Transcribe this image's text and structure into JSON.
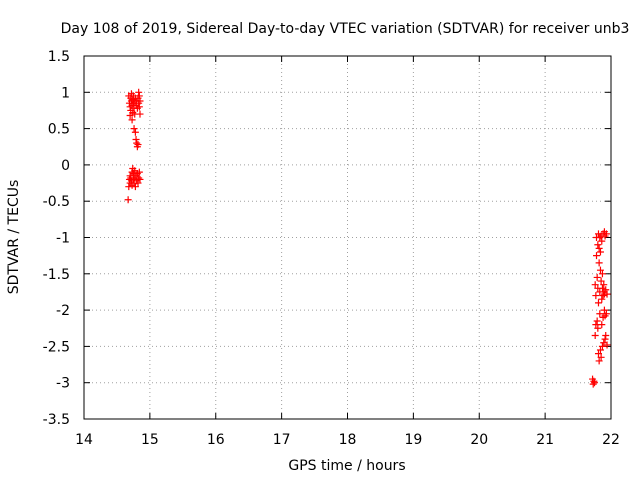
{
  "chart_data": {
    "type": "scatter",
    "title": "Day 108 of 2019, Sidereal Day-to-day VTEC variation (SDTVAR) for receiver unb3",
    "xlabel": "GPS time / hours",
    "ylabel": "SDTVAR / TECUs",
    "xlim": [
      14,
      22
    ],
    "ylim": [
      -3.5,
      1.5
    ],
    "xticks": [
      14,
      15,
      16,
      17,
      18,
      19,
      20,
      21,
      22
    ],
    "yticks": [
      1.5,
      1,
      0.5,
      0,
      -0.5,
      -1,
      -1.5,
      -2,
      -2.5,
      -3,
      -3.5
    ],
    "xtick_labels": [
      "14",
      "15",
      "16",
      "17",
      "18",
      "19",
      "20",
      "21",
      "22"
    ],
    "ytick_labels": [
      "1.5",
      "1",
      "0.5",
      "0",
      "-0.5",
      "-1",
      "-1.5",
      "-2",
      "-2.5",
      "-3",
      "-3.5"
    ],
    "grid": true,
    "marker": "+",
    "color": "#ff0000",
    "series": [
      {
        "name": "SDTVAR",
        "points": [
          [
            14.68,
            0.95
          ],
          [
            14.69,
            0.85
          ],
          [
            14.7,
            0.8
          ],
          [
            14.7,
            0.68
          ],
          [
            14.71,
            0.92
          ],
          [
            14.71,
            0.75
          ],
          [
            14.72,
            0.88
          ],
          [
            14.72,
            0.98
          ],
          [
            14.73,
            0.62
          ],
          [
            14.73,
            0.82
          ],
          [
            14.74,
            0.9
          ],
          [
            14.74,
            0.72
          ],
          [
            14.75,
            0.85
          ],
          [
            14.75,
            0.95
          ],
          [
            14.76,
            0.78
          ],
          [
            14.76,
            0.5
          ],
          [
            14.77,
            0.88
          ],
          [
            14.77,
            0.7
          ],
          [
            14.78,
            0.45
          ],
          [
            14.78,
            0.92
          ],
          [
            14.79,
            0.82
          ],
          [
            14.79,
            0.35
          ],
          [
            14.8,
            0.3
          ],
          [
            14.8,
            0.88
          ],
          [
            14.81,
            0.25
          ],
          [
            14.81,
            0.78
          ],
          [
            14.82,
            0.92
          ],
          [
            14.82,
            0.28
          ],
          [
            14.83,
            0.85
          ],
          [
            14.83,
            1.0
          ],
          [
            14.84,
            0.8
          ],
          [
            14.84,
            0.95
          ],
          [
            14.85,
            0.88
          ],
          [
            14.85,
            0.7
          ],
          [
            14.67,
            -0.48
          ],
          [
            14.68,
            -0.3
          ],
          [
            14.69,
            -0.2
          ],
          [
            14.7,
            -0.15
          ],
          [
            14.7,
            -0.25
          ],
          [
            14.71,
            -0.18
          ],
          [
            14.72,
            -0.22
          ],
          [
            14.73,
            -0.1
          ],
          [
            14.73,
            -0.28
          ],
          [
            14.74,
            -0.05
          ],
          [
            14.75,
            -0.2
          ],
          [
            14.75,
            -0.12
          ],
          [
            14.76,
            -0.25
          ],
          [
            14.77,
            -0.08
          ],
          [
            14.77,
            -0.18
          ],
          [
            14.78,
            -0.3
          ],
          [
            14.79,
            -0.15
          ],
          [
            14.8,
            -0.22
          ],
          [
            14.81,
            -0.12
          ],
          [
            14.82,
            -0.25
          ],
          [
            14.83,
            -0.18
          ],
          [
            14.84,
            -0.1
          ],
          [
            14.85,
            -0.2
          ],
          [
            21.72,
            -2.95
          ],
          [
            21.73,
            -3.02
          ],
          [
            21.74,
            -2.98
          ],
          [
            21.75,
            -3.0
          ],
          [
            21.76,
            -2.35
          ],
          [
            21.76,
            -1.65
          ],
          [
            21.77,
            -1.8
          ],
          [
            21.77,
            -2.2
          ],
          [
            21.78,
            -1.25
          ],
          [
            21.78,
            -1.0
          ],
          [
            21.79,
            -1.55
          ],
          [
            21.79,
            -2.15
          ],
          [
            21.8,
            -1.7
          ],
          [
            21.8,
            -2.25
          ],
          [
            21.8,
            -1.1
          ],
          [
            21.81,
            -1.9
          ],
          [
            21.81,
            -2.6
          ],
          [
            21.81,
            -0.95
          ],
          [
            21.82,
            -1.35
          ],
          [
            21.82,
            -2.7
          ],
          [
            21.82,
            -1.15
          ],
          [
            21.83,
            -1.75
          ],
          [
            21.83,
            -2.05
          ],
          [
            21.83,
            -1.0
          ],
          [
            21.84,
            -1.45
          ],
          [
            21.84,
            -2.55
          ],
          [
            21.84,
            -1.2
          ],
          [
            21.85,
            -1.6
          ],
          [
            21.85,
            -2.65
          ],
          [
            21.85,
            -0.98
          ],
          [
            21.86,
            -1.85
          ],
          [
            21.86,
            -2.2
          ],
          [
            21.86,
            -1.05
          ],
          [
            21.87,
            -1.5
          ],
          [
            21.87,
            -2.5
          ],
          [
            21.87,
            -1.7
          ],
          [
            21.88,
            -1.8
          ],
          [
            21.88,
            -2.1
          ],
          [
            21.88,
            -0.95
          ],
          [
            21.89,
            -1.65
          ],
          [
            21.89,
            -2.45
          ],
          [
            21.89,
            -1.75
          ],
          [
            21.9,
            -2.0
          ],
          [
            21.9,
            -0.92
          ],
          [
            21.9,
            -1.78
          ],
          [
            21.91,
            -2.4
          ],
          [
            21.91,
            -2.08
          ],
          [
            21.91,
            -0.98
          ],
          [
            21.92,
            -1.72
          ],
          [
            21.92,
            -2.35
          ],
          [
            21.93,
            -2.05
          ],
          [
            21.93,
            -0.95
          ],
          [
            21.94,
            -1.78
          ],
          [
            21.94,
            -2.48
          ]
        ]
      }
    ]
  }
}
